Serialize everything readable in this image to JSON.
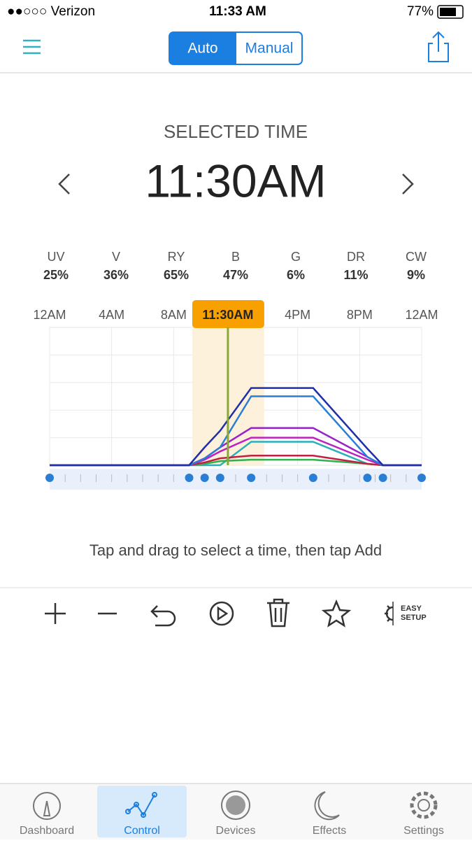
{
  "status_bar": {
    "carrier": "●●○○○ Verizon",
    "time": "11:33 AM",
    "battery": "77%"
  },
  "nav": {
    "modes": [
      "Auto",
      "Manual"
    ]
  },
  "selected": {
    "label": "SELECTED TIME",
    "time": "11:30AM"
  },
  "channels": [
    {
      "name": "UV",
      "value": "25%"
    },
    {
      "name": "V",
      "value": "36%"
    },
    {
      "name": "RY",
      "value": "65%"
    },
    {
      "name": "B",
      "value": "47%"
    },
    {
      "name": "G",
      "value": "6%"
    },
    {
      "name": "DR",
      "value": "11%"
    },
    {
      "name": "CW",
      "value": "9%"
    }
  ],
  "chart": {
    "type": "line",
    "xlim": [
      0,
      24
    ],
    "ylim": [
      0,
      100
    ],
    "xticks": [
      {
        "value": 0,
        "label": "12AM"
      },
      {
        "value": 4,
        "label": "4AM"
      },
      {
        "value": 8,
        "label": "8AM"
      },
      {
        "value": 16,
        "label": "4PM"
      },
      {
        "value": 20,
        "label": "8PM"
      },
      {
        "value": 24,
        "label": "12AM"
      }
    ],
    "marker": {
      "value": 11.5,
      "label": "11:30AM"
    },
    "x": [
      0,
      9,
      10,
      11,
      13,
      17,
      20.5,
      21.5,
      24
    ],
    "series": [
      {
        "color": "#2ab0b8",
        "values": [
          0,
          0,
          0,
          0,
          17,
          17,
          1,
          0,
          0
        ]
      },
      {
        "color": "#30b050",
        "values": [
          0,
          0,
          1,
          3,
          4,
          4,
          1,
          0,
          0
        ]
      },
      {
        "color": "#c02040",
        "values": [
          0,
          0,
          2,
          5,
          7,
          7,
          1,
          0,
          0
        ]
      },
      {
        "color": "#c020c0",
        "values": [
          0,
          0,
          4,
          10,
          20,
          20,
          4,
          0,
          0
        ]
      },
      {
        "color": "#9a22c9",
        "values": [
          0,
          0,
          5,
          13,
          27,
          27,
          6,
          0,
          0
        ]
      },
      {
        "color": "#2a7fd4",
        "values": [
          0,
          0,
          5,
          13,
          50,
          50,
          6,
          0,
          0
        ]
      },
      {
        "color": "#1f2fa8",
        "values": [
          0,
          0,
          13,
          25,
          56,
          56,
          12,
          0,
          0
        ]
      }
    ]
  },
  "hint": "Tap and drag to select a time, then tap Add",
  "toolbar": {
    "easy_setup": [
      "EASY",
      "SETUP"
    ]
  },
  "tabs": [
    "Dashboard",
    "Control",
    "Devices",
    "Effects",
    "Settings"
  ]
}
